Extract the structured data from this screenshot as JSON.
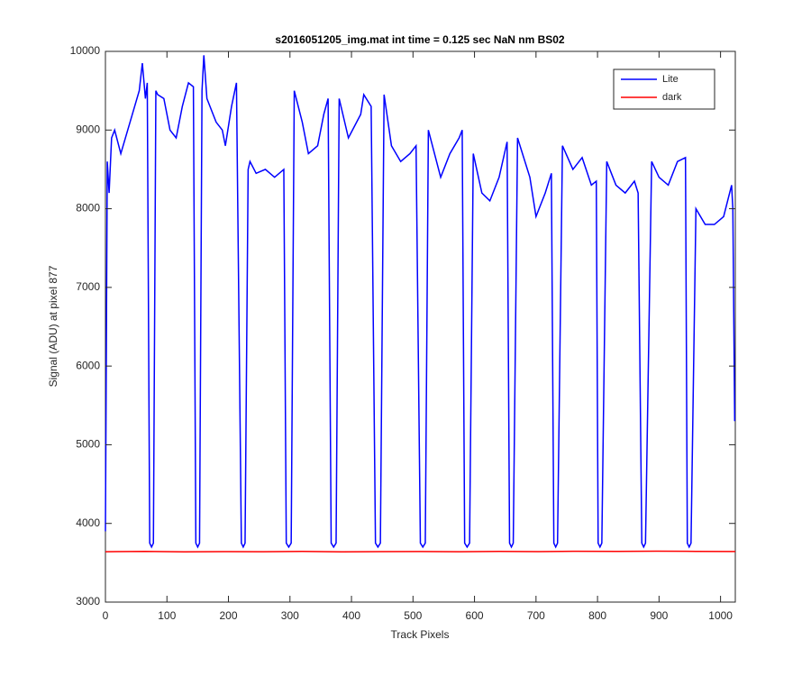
{
  "chart_data": {
    "type": "line",
    "title": "s2016051205_img.mat int time = 0.125 sec  NaN nm BS02",
    "xlabel": "Track Pixels",
    "ylabel": "Signal (ADU) at pixel 877",
    "xlim": [
      0,
      1024
    ],
    "ylim": [
      3000,
      10000
    ],
    "xticks": [
      0,
      100,
      200,
      300,
      400,
      500,
      600,
      700,
      800,
      900,
      1000
    ],
    "yticks": [
      3000,
      4000,
      5000,
      6000,
      7000,
      8000,
      9000,
      10000
    ],
    "legend": "upper right",
    "series": [
      {
        "name": "Lite",
        "color": "#0000ff",
        "x": [
          0,
          3,
          6,
          10,
          15,
          25,
          40,
          55,
          60,
          65,
          68,
          72,
          75,
          78,
          82,
          85,
          95,
          105,
          115,
          125,
          135,
          143,
          147,
          150,
          153,
          157,
          160,
          165,
          180,
          190,
          195,
          205,
          213,
          221,
          224,
          227,
          232,
          235,
          245,
          260,
          275,
          290,
          294,
          298,
          302,
          307,
          320,
          330,
          345,
          355,
          362,
          367,
          371,
          375,
          380,
          395,
          415,
          420,
          432,
          439,
          443,
          447,
          453,
          465,
          480,
          495,
          505,
          512,
          516,
          520,
          525,
          545,
          560,
          575,
          580,
          584,
          588,
          592,
          598,
          612,
          625,
          640,
          653,
          657,
          660,
          663,
          670,
          690,
          700,
          715,
          725,
          729,
          732,
          735,
          743,
          760,
          775,
          790,
          798,
          801,
          804,
          807,
          815,
          830,
          845,
          860,
          866,
          872,
          875,
          878,
          888,
          900,
          915,
          930,
          943,
          946,
          949,
          952,
          960,
          975,
          990,
          1005,
          1018,
          1020,
          1023
        ],
        "values": [
          3900,
          8600,
          8200,
          8900,
          9000,
          8700,
          9100,
          9500,
          9850,
          9400,
          9600,
          3750,
          3700,
          3750,
          9500,
          9450,
          9400,
          9000,
          8900,
          9300,
          9600,
          9550,
          3750,
          3700,
          3750,
          9500,
          9950,
          9400,
          9100,
          9000,
          8800,
          9300,
          9600,
          3750,
          3700,
          3750,
          8500,
          8600,
          8450,
          8500,
          8400,
          8500,
          3750,
          3700,
          3750,
          9500,
          9100,
          8700,
          8800,
          9200,
          9400,
          3750,
          3700,
          3750,
          9400,
          8900,
          9200,
          9450,
          9300,
          3750,
          3700,
          3750,
          9450,
          8800,
          8600,
          8700,
          8800,
          3750,
          3700,
          3750,
          9000,
          8400,
          8700,
          8900,
          9000,
          3750,
          3700,
          3750,
          8700,
          8200,
          8100,
          8400,
          8850,
          3750,
          3700,
          3750,
          8900,
          8400,
          7900,
          8200,
          8450,
          3750,
          3700,
          3750,
          8800,
          8500,
          8650,
          8300,
          8350,
          3750,
          3700,
          3750,
          8600,
          8300,
          8200,
          8350,
          8200,
          3750,
          3700,
          3750,
          8600,
          8400,
          8300,
          8600,
          8650,
          3750,
          3700,
          3750,
          8000,
          7800,
          7800,
          7900,
          8300,
          8000,
          5300
        ]
      },
      {
        "name": "dark",
        "color": "#ff0000",
        "x": [
          0,
          64,
          128,
          192,
          256,
          320,
          384,
          448,
          512,
          576,
          640,
          704,
          768,
          832,
          896,
          960,
          1024
        ],
        "values": [
          3640,
          3645,
          3638,
          3642,
          3640,
          3644,
          3639,
          3641,
          3643,
          3640,
          3645,
          3642,
          3646,
          3644,
          3648,
          3645,
          3643
        ]
      }
    ]
  }
}
